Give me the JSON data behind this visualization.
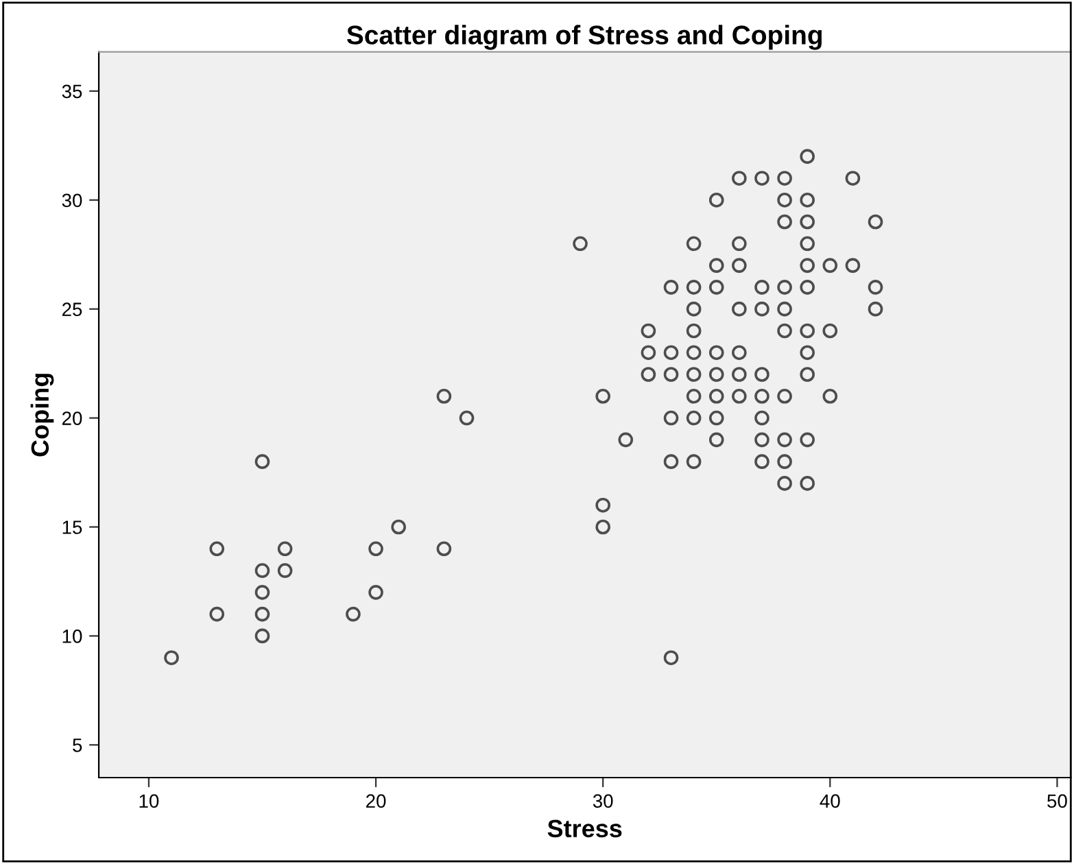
{
  "chart_data": {
    "type": "scatter",
    "title": "Scatter diagram of Stress and Coping",
    "xlabel": "Stress",
    "ylabel": "Coping",
    "xlim": [
      7.8,
      50.6
    ],
    "ylim": [
      3.5,
      36.8
    ],
    "xticks": [
      10,
      20,
      30,
      40,
      50
    ],
    "yticks": [
      5,
      10,
      15,
      20,
      25,
      30,
      35
    ],
    "grid": false,
    "marker": "circle",
    "series": [
      {
        "color": "#4d4d4d",
        "x": [
          11,
          13,
          13,
          15,
          15,
          15,
          15,
          15,
          16,
          16,
          19,
          20,
          20,
          21,
          23,
          23,
          24,
          29,
          30,
          30,
          30,
          31,
          33,
          32,
          32,
          32,
          33,
          33,
          33,
          33,
          33,
          34,
          34,
          34,
          34,
          34,
          34,
          34,
          34,
          34,
          35,
          35,
          35,
          35,
          35,
          35,
          35,
          35,
          36,
          36,
          36,
          36,
          36,
          36,
          36,
          37,
          37,
          37,
          37,
          37,
          37,
          37,
          37,
          38,
          38,
          38,
          38,
          38,
          38,
          38,
          38,
          38,
          38,
          39,
          39,
          39,
          39,
          39,
          39,
          39,
          39,
          39,
          39,
          39,
          40,
          40,
          40,
          41,
          41,
          42,
          42,
          42
        ],
        "values": [
          9,
          14,
          11,
          18,
          13,
          12,
          11,
          10,
          14,
          13,
          11,
          14,
          12,
          15,
          21,
          14,
          20,
          28,
          21,
          16,
          15,
          19,
          9,
          24,
          23,
          22,
          26,
          23,
          22,
          20,
          18,
          28,
          26,
          25,
          24,
          23,
          22,
          21,
          20,
          18,
          30,
          27,
          26,
          23,
          22,
          21,
          20,
          19,
          31,
          28,
          27,
          25,
          23,
          22,
          21,
          31,
          26,
          25,
          22,
          21,
          20,
          19,
          18,
          31,
          30,
          29,
          26,
          25,
          24,
          21,
          19,
          18,
          17,
          32,
          30,
          29,
          28,
          27,
          26,
          24,
          23,
          22,
          19,
          17,
          27,
          24,
          21,
          31,
          27,
          29,
          26,
          25
        ]
      }
    ]
  }
}
